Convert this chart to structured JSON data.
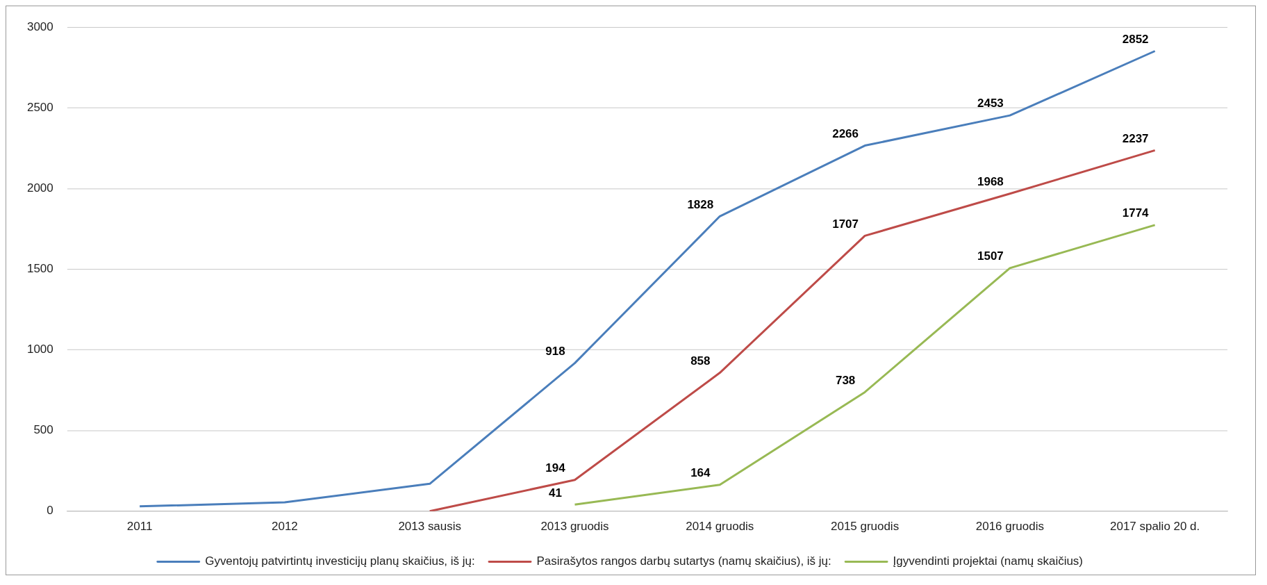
{
  "chart_data": {
    "type": "line",
    "categories": [
      "2011",
      "2012",
      "2013 sausis",
      "2013 gruodis",
      "2014 gruodis",
      "2015 gruodis",
      "2016 gruodis",
      "2017 spalio 20 d."
    ],
    "series": [
      {
        "name": "Gyventojų patvirtintų investicijų planų skaičius, iš jų:",
        "color": "#4a7ebb",
        "values": [
          30,
          55,
          170,
          918,
          1828,
          2266,
          2453,
          2852
        ],
        "value_labels": [
          null,
          null,
          null,
          "918",
          "1828",
          "2266",
          "2453",
          "2852"
        ]
      },
      {
        "name": "Pasirašytos rangos darbų sutartys (namų skaičius), iš jų:",
        "color": "#be4b48",
        "values": [
          null,
          null,
          0,
          194,
          858,
          1707,
          1968,
          2237
        ],
        "value_labels": [
          null,
          null,
          null,
          "194",
          "858",
          "1707",
          "1968",
          "2237"
        ]
      },
      {
        "name": "Įgyvendinti projektai (namų skaičius)",
        "color": "#98b954",
        "values": [
          null,
          null,
          null,
          41,
          164,
          738,
          1507,
          1774
        ],
        "value_labels": [
          null,
          null,
          null,
          "41",
          "164",
          "738",
          "1507",
          "1774"
        ]
      }
    ],
    "ylim": [
      0,
      3000
    ],
    "yticks": [
      0,
      500,
      1000,
      1500,
      2000,
      2500,
      3000
    ],
    "grid": "y",
    "legend": "bottom",
    "marker": "none",
    "line_style": "solid"
  }
}
